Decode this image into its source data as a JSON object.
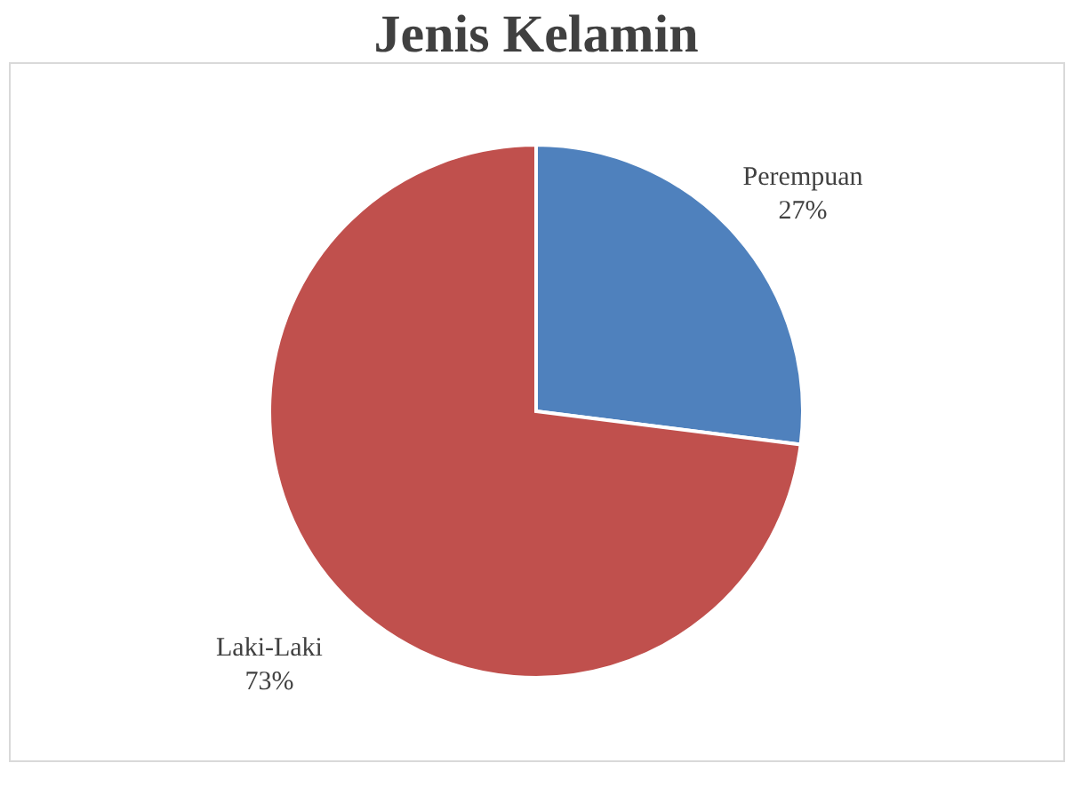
{
  "chart_data": {
    "type": "pie",
    "title": "Jenis Kelamin",
    "categories": [
      "Perempuan",
      "Laki-Laki"
    ],
    "values": [
      27,
      73
    ],
    "value_labels": [
      "27%",
      "73%"
    ],
    "colors": [
      "#4f81bd",
      "#c0504d"
    ],
    "legend": false
  }
}
